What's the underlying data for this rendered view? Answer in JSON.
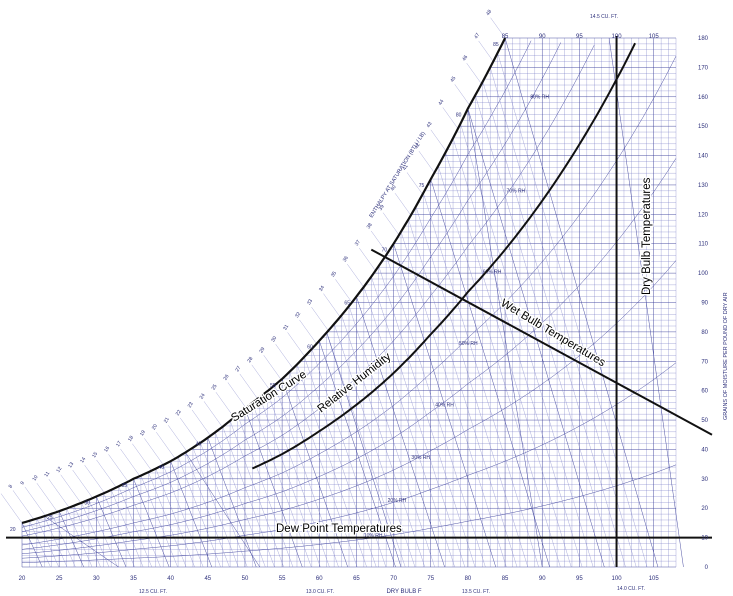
{
  "labels": {
    "saturation_curve": "Saturation Curve",
    "relative_humidity": "Relative Humidity",
    "wet_bulb": "Wet Bulb Temperatures",
    "dry_bulb": "Dry Bulb Temperatures",
    "dew_point": "Dew Point Temperatures",
    "enthalpy_axis": "ENTHALPY AT SATURATION (BTU / LB)",
    "x_axis": "DRY BULB F",
    "y_axis_right": "GRAINS OF MOISTURE PER POUND OF DRY AIR"
  },
  "volume_labels": {
    "v125": "12.5 CU. FT.",
    "v130": "13.0 CU. FT.",
    "v135": "13.5 CU. FT.",
    "v140": "14.0 CU. FT.",
    "v145": "14.5 CU. FT."
  },
  "chart_data": {
    "type": "psychrometric",
    "x_axis": {
      "label": "DRY BULB F",
      "range": [
        20,
        108
      ],
      "ticks": [
        "20",
        "25",
        "30",
        "35",
        "40",
        "45",
        "50",
        "55",
        "60",
        "65",
        "70",
        "75",
        "80",
        "85",
        "90",
        "95",
        "100",
        "105"
      ],
      "minor_step": 1
    },
    "y_axis_right": {
      "label": "GRAINS OF MOISTURE PER POUND OF DRY AIR",
      "range": [
        0,
        180
      ],
      "ticks": [
        "0",
        "10",
        "20",
        "30",
        "40",
        "50",
        "60",
        "70",
        "80",
        "90",
        "100",
        "110",
        "120",
        "130",
        "140",
        "150",
        "160",
        "170",
        "180"
      ],
      "minor_step": 2
    },
    "saturation_curve": {
      "x": [
        20,
        25,
        30,
        35,
        40,
        45,
        50,
        55,
        60,
        65,
        70,
        75,
        80,
        85
      ],
      "y": [
        15,
        19,
        24,
        30,
        36,
        44,
        54,
        64,
        77,
        92,
        110,
        132,
        156,
        180
      ]
    },
    "relative_humidity_percent": [
      10,
      20,
      30,
      40,
      50,
      60,
      70,
      80,
      90
    ],
    "relative_humidity_labels": [
      "10% RH",
      "20% RH",
      "30% RH",
      "40% RH",
      "50% RH",
      "60% RH",
      "70% RH",
      "80% RH",
      "90% RH"
    ],
    "highlight_rh_percent": 60,
    "wet_bulb_ticks": [
      "20",
      "25",
      "30",
      "35",
      "40",
      "45",
      "50",
      "55",
      "60",
      "65",
      "70",
      "75",
      "80",
      "85"
    ],
    "enthalpy_ticks": [
      "7",
      "8",
      "9",
      "10",
      "11",
      "12",
      "13",
      "14",
      "15",
      "16",
      "17",
      "18",
      "19",
      "20",
      "21",
      "22",
      "23",
      "24",
      "25",
      "26",
      "27",
      "28",
      "29",
      "30",
      "31",
      "32",
      "33",
      "34",
      "35",
      "36",
      "37",
      "38",
      "39",
      "40",
      "41",
      "42",
      "43",
      "44",
      "45",
      "46",
      "47",
      "48"
    ],
    "volume_lines_cuft": [
      12.5,
      13.0,
      13.5,
      14.0,
      14.5
    ],
    "annotations": {
      "dew_point_gr": 10,
      "dry_bulb_f": 100,
      "wet_bulb_line": [
        [
          67,
          108
        ],
        [
          108,
          45
        ]
      ]
    }
  }
}
